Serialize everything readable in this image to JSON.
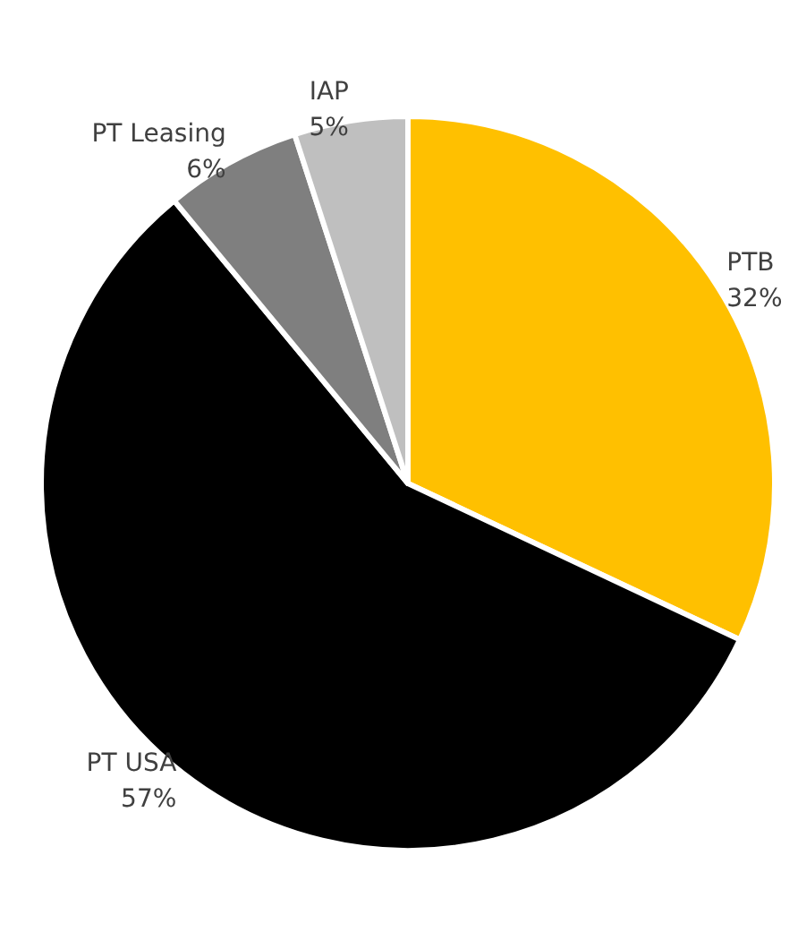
{
  "chart_data": {
    "type": "pie",
    "categories": [
      "PTB",
      "PT USA",
      "PT Leasing",
      "IAP"
    ],
    "values": [
      32,
      57,
      6,
      5
    ],
    "value_labels": [
      "32%",
      "57%",
      "6%",
      "5%"
    ],
    "colors": [
      "#ffc000",
      "#000000",
      "#7f7f7f",
      "#bfbfbf"
    ]
  }
}
